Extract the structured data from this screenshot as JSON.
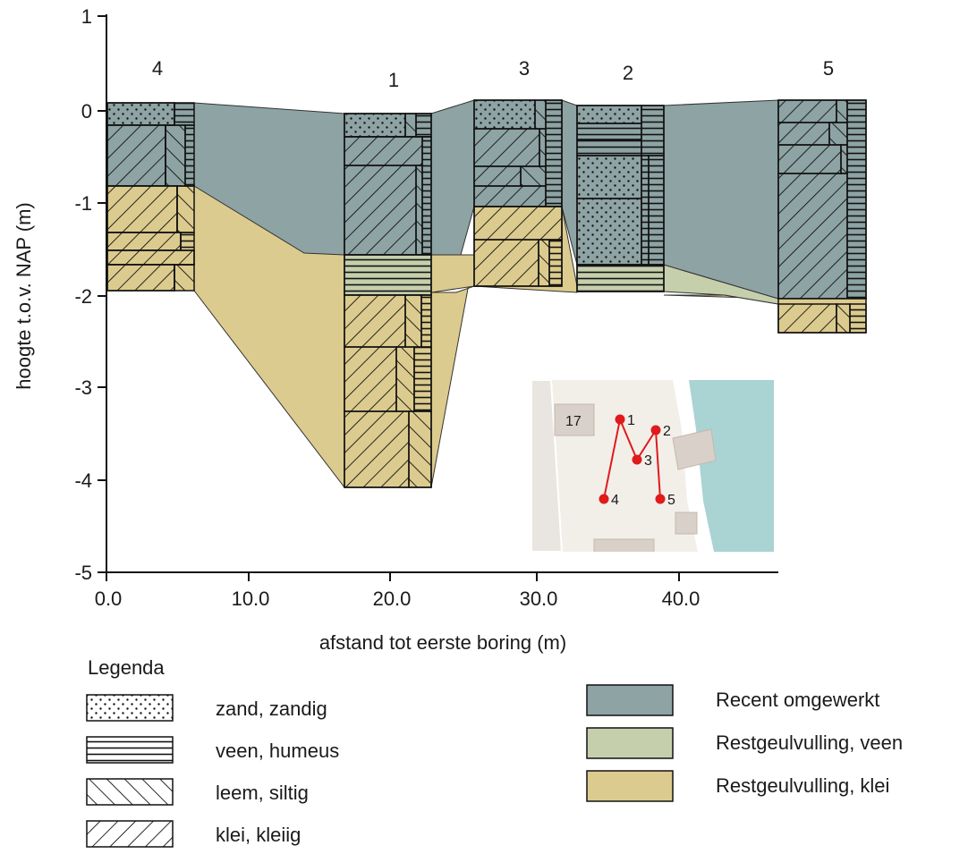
{
  "chart_data": {
    "type": "geological-cross-section",
    "xlabel": "afstand tot eerste boring (m)",
    "ylabel": "hoogte t.o.v. NAP (m)",
    "xlim": [
      0,
      46
    ],
    "ylim": [
      -5,
      1
    ],
    "x_ticks": [
      "0.0",
      "10.0",
      "20.0",
      "30.0",
      "40.0"
    ],
    "y_ticks": [
      "1",
      "0",
      "-1",
      "-2",
      "-3",
      "-4",
      "-5"
    ],
    "boreholes": [
      {
        "id": "4",
        "x_start": 0.0,
        "x_end": 6.3,
        "top": 0.07,
        "bottom": -1.95
      },
      {
        "id": "1",
        "x_start": 17.2,
        "x_end": 23.5,
        "top": -0.05,
        "bottom": -4.08
      },
      {
        "id": "3",
        "x_start": 26.8,
        "x_end": 33.1,
        "top": 0.1,
        "bottom": -1.93
      },
      {
        "id": "2",
        "x_start": 34.2,
        "x_end": 40.5,
        "top": 0.05,
        "bottom": -1.98
      },
      {
        "id": "5",
        "x_start": 49.2,
        "x_end": 55.5,
        "top": 0.1,
        "bottom": -2.42
      }
    ],
    "units": [
      {
        "name": "Recent omgewerkt",
        "color": "#8ea3a3"
      },
      {
        "name": "Restgeulvulling, veen",
        "color": "#c6cfac"
      },
      {
        "name": "Restgeulvulling, klei",
        "color": "#dccb8e"
      }
    ]
  },
  "legend": {
    "title": "Legenda",
    "lithology": [
      {
        "label": "zand, zandig",
        "pattern": "dots"
      },
      {
        "label": "veen, humeus",
        "pattern": "hlines"
      },
      {
        "label": "leem, siltig",
        "pattern": "backslash"
      },
      {
        "label": "klei, kleiig",
        "pattern": "slash"
      }
    ],
    "units": [
      {
        "label": "Recent omgewerkt",
        "color": "#8ea3a3"
      },
      {
        "label": "Restgeulvulling, veen",
        "color": "#c6cfac"
      },
      {
        "label": "Restgeulvulling, klei",
        "color": "#dccb8e"
      }
    ]
  },
  "inset_map": {
    "building_label": "17",
    "points": [
      "1",
      "2",
      "3",
      "4",
      "5"
    ],
    "route_color": "#e01b1b",
    "water_color": "#aad3d3"
  }
}
